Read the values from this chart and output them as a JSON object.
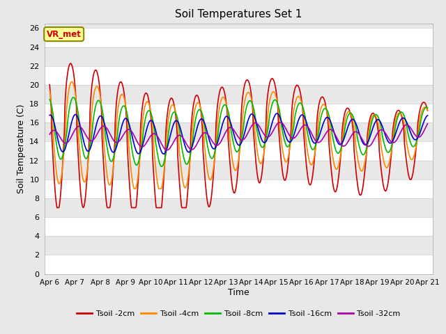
{
  "title": "Soil Temperatures Set 1",
  "xlabel": "Time",
  "ylabel": "Soil Temperature (C)",
  "ylim": [
    0,
    26
  ],
  "yticks": [
    0,
    2,
    4,
    6,
    8,
    10,
    12,
    14,
    16,
    18,
    20,
    22,
    24,
    26
  ],
  "xtick_labels": [
    "Apr 6",
    "Apr 7",
    "Apr 8",
    "Apr 9",
    "Apr 10",
    "Apr 11",
    "Apr 12",
    "Apr 13",
    "Apr 14",
    "Apr 15",
    "Apr 16",
    "Apr 17",
    "Apr 18",
    "Apr 19",
    "Apr 20",
    "Apr 21"
  ],
  "xtick_positions": [
    0,
    1,
    2,
    3,
    4,
    5,
    6,
    7,
    8,
    9,
    10,
    11,
    12,
    13,
    14,
    15
  ],
  "colors": {
    "Tsoil -2cm": "#cc0000",
    "Tsoil -4cm": "#ff8800",
    "Tsoil -8cm": "#00bb00",
    "Tsoil -16cm": "#0000cc",
    "Tsoil -32cm": "#aa00aa"
  },
  "annotation_text": "VR_met",
  "annotation_color": "#cc0000",
  "annotation_bg": "#ffff99",
  "annotation_border": "#888800",
  "bg_color": "#e8e8e8",
  "grid_color": "#ffffff",
  "linewidth": 1.2
}
